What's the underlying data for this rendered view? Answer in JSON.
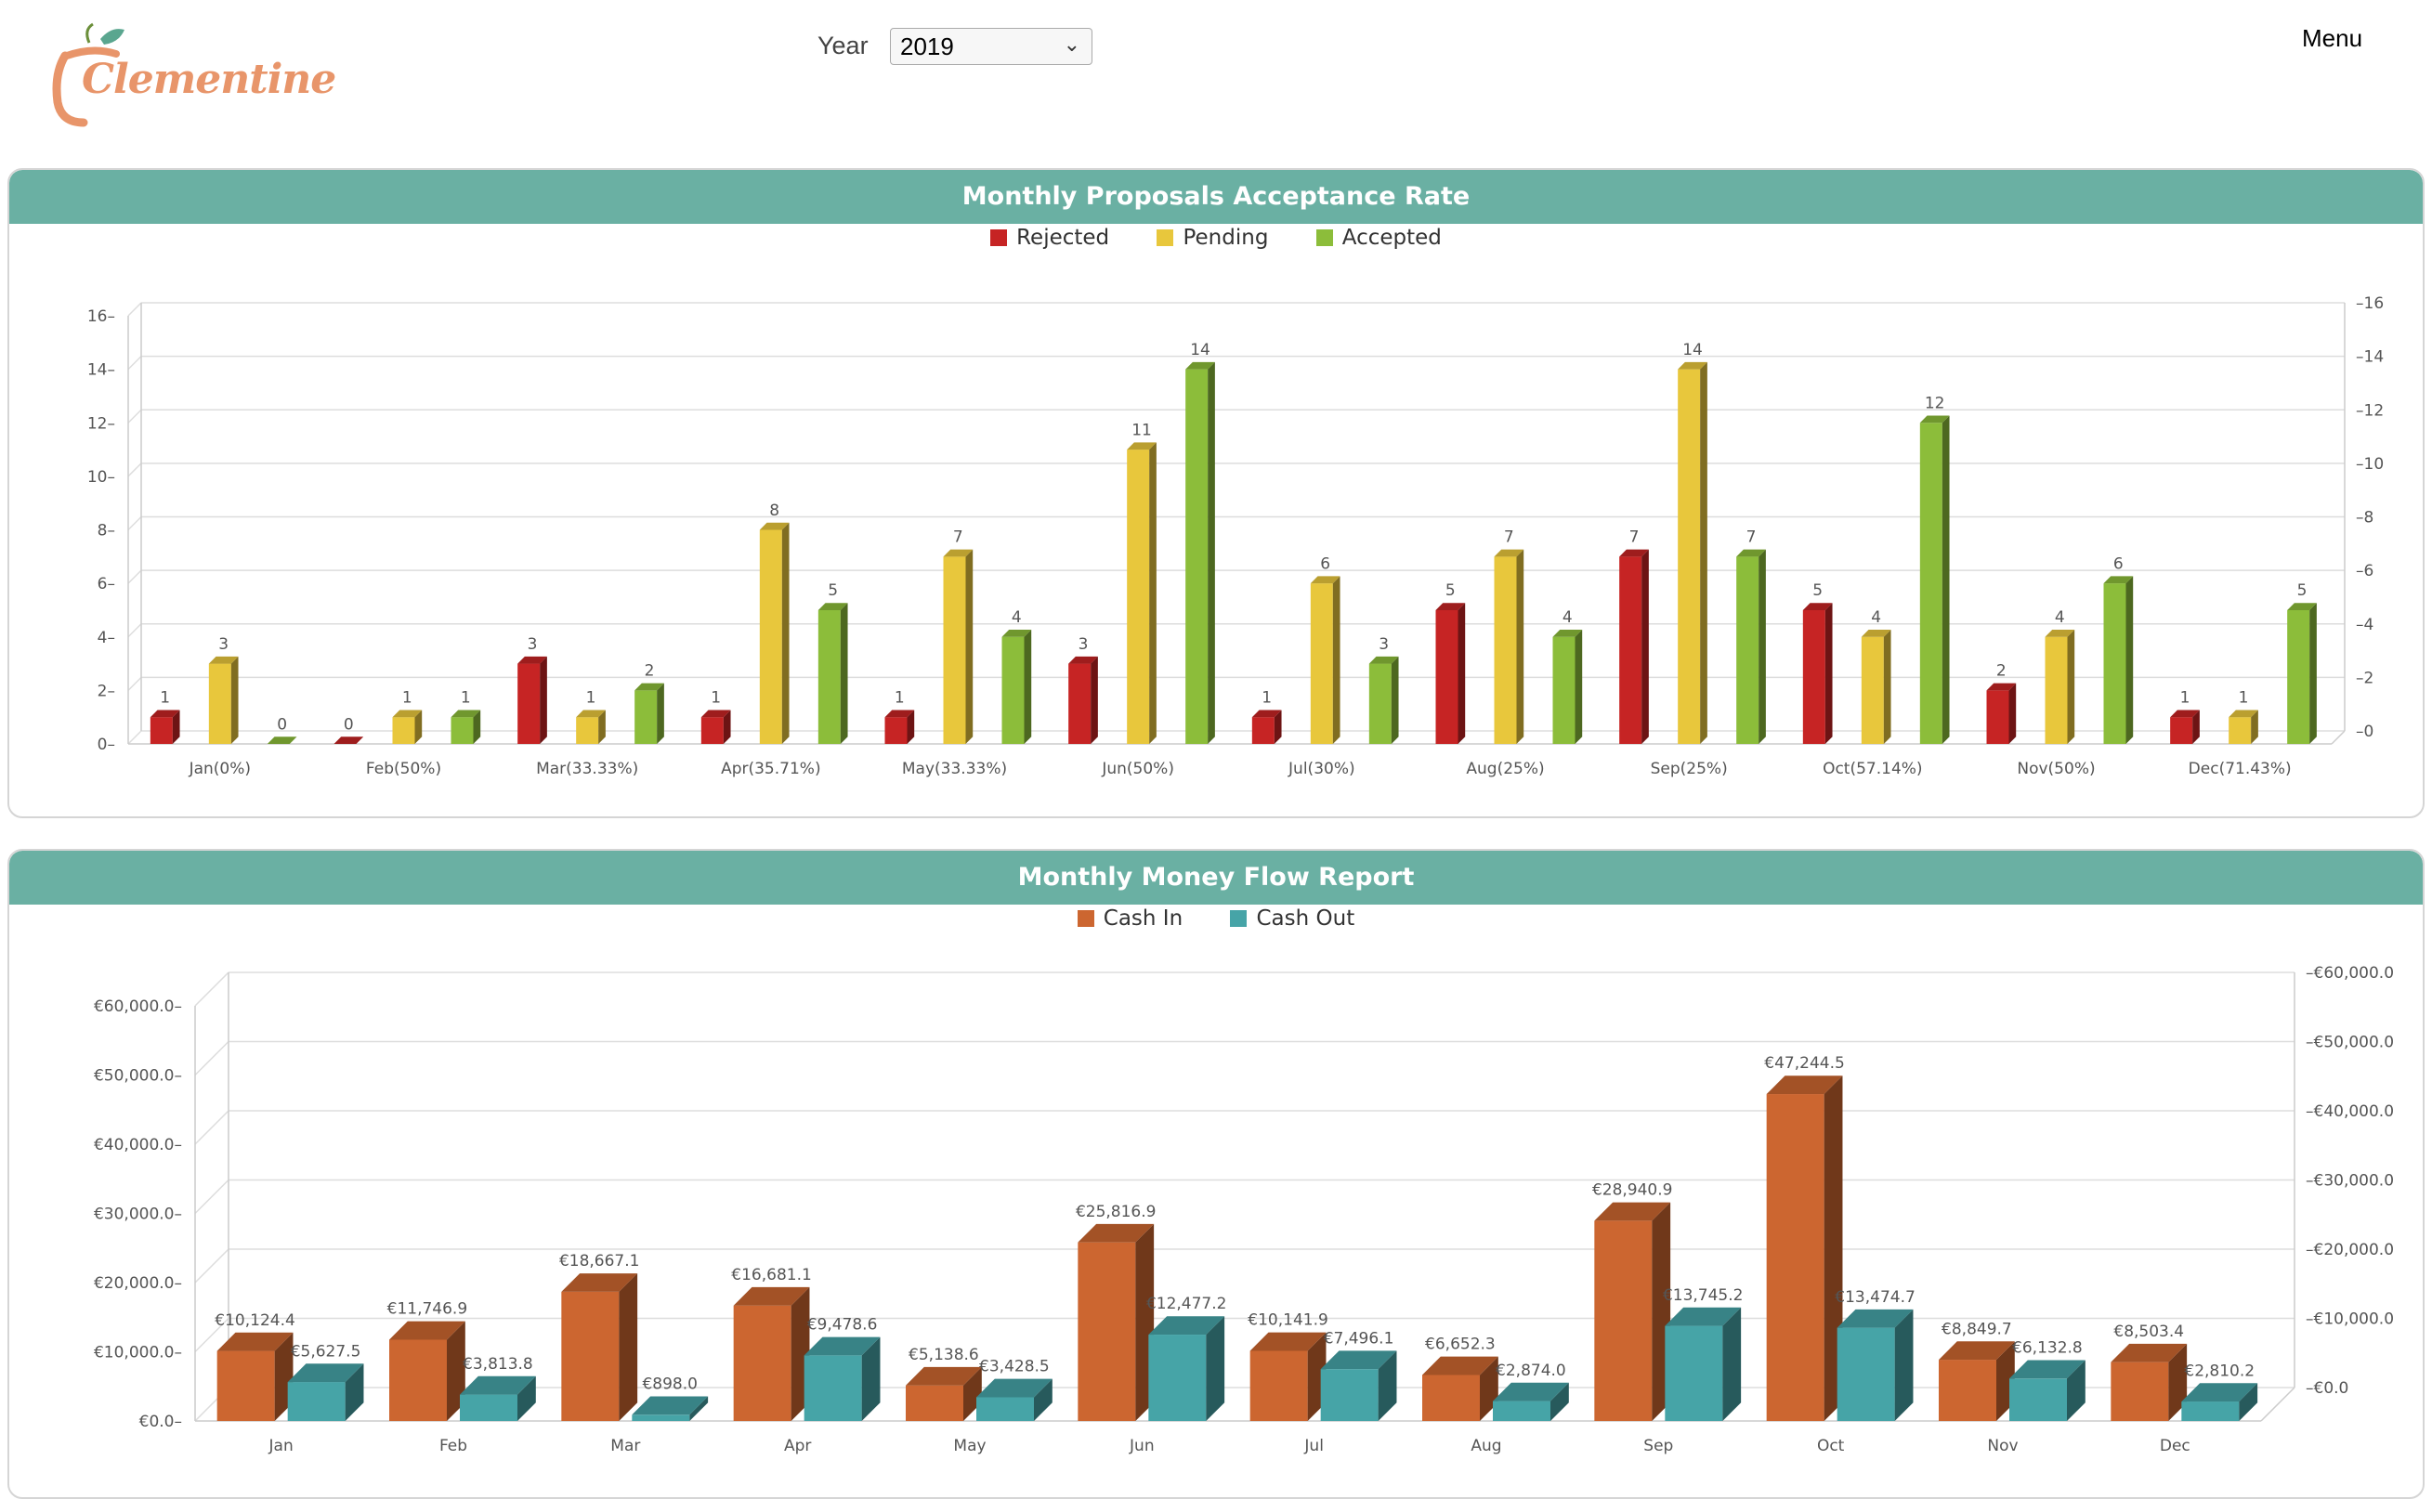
{
  "header": {
    "logo_text": "Clementine",
    "year_label": "Year",
    "year_selected": "2019",
    "menu_label": "Menu"
  },
  "colors": {
    "panel_header": "#6ab0a3",
    "rejected": "#c62424",
    "pending": "#e8c73c",
    "accepted": "#8cbd3a",
    "cash_in": "#cc6630",
    "cash_out": "#46a4a7"
  },
  "proposals": {
    "title": "Monthly Proposals Acceptance Rate",
    "legend": [
      "Rejected",
      "Pending",
      "Accepted"
    ]
  },
  "money": {
    "title": "Monthly Money Flow Report",
    "legend": [
      "Cash In",
      "Cash Out"
    ]
  },
  "chart_data": [
    {
      "type": "bar",
      "title": "Monthly Proposals Acceptance Rate",
      "categories": [
        "Jan(0%)",
        "Feb(50%)",
        "Mar(33.33%)",
        "Apr(35.71%)",
        "May(33.33%)",
        "Jun(50%)",
        "Jul(30%)",
        "Aug(25%)",
        "Sep(25%)",
        "Oct(57.14%)",
        "Nov(50%)",
        "Dec(71.43%)"
      ],
      "series": [
        {
          "name": "Rejected",
          "values": [
            1,
            0,
            3,
            1,
            1,
            3,
            1,
            5,
            7,
            5,
            2,
            1
          ]
        },
        {
          "name": "Pending",
          "values": [
            3,
            1,
            1,
            8,
            7,
            11,
            6,
            7,
            14,
            4,
            4,
            1
          ]
        },
        {
          "name": "Accepted",
          "values": [
            0,
            1,
            2,
            5,
            4,
            14,
            3,
            4,
            7,
            12,
            6,
            5
          ]
        }
      ],
      "ylim": [
        0,
        16
      ],
      "yticks": [
        "0",
        "2",
        "4",
        "6",
        "8",
        "10",
        "12",
        "14",
        "16"
      ],
      "grid": true,
      "legend_position": "top-center"
    },
    {
      "type": "bar",
      "title": "Monthly Money Flow Report",
      "categories": [
        "Jan",
        "Feb",
        "Mar",
        "Apr",
        "May",
        "Jun",
        "Jul",
        "Aug",
        "Sep",
        "Oct",
        "Nov",
        "Dec"
      ],
      "series": [
        {
          "name": "Cash In",
          "values": [
            10124.4,
            11746.9,
            18667.1,
            16681.1,
            5138.6,
            25816.9,
            10141.9,
            6652.3,
            28940.9,
            47244.5,
            8849.7,
            8503.4
          ],
          "labels": [
            "€10,124.4",
            "€11,746.9",
            "€18,667.1",
            "€16,681.1",
            "€5,138.6",
            "€25,816.9",
            "€10,141.9",
            "€6,652.3",
            "€28,940.9",
            "€47,244.5",
            "€8,849.7",
            "€8,503.4"
          ]
        },
        {
          "name": "Cash Out",
          "values": [
            5627.5,
            3813.8,
            898.0,
            9478.6,
            3428.5,
            12477.2,
            7496.1,
            2874.0,
            13745.2,
            13474.7,
            6132.8,
            2810.2
          ],
          "labels": [
            "€5,627.5",
            "€3,813.8",
            "€898.0",
            "€9,478.6",
            "€3,428.5",
            "€12,477.2",
            "€7,496.1",
            "€2,874.0",
            "€13,745.2",
            "€13,474.7",
            "€6,132.8",
            "€2,810.2"
          ]
        }
      ],
      "ylim": [
        0,
        60000
      ],
      "yticks": [
        "€0.0",
        "€10,000.0",
        "€20,000.0",
        "€30,000.0",
        "€40,000.0",
        "€50,000.0",
        "€60,000.0"
      ],
      "grid": true,
      "legend_position": "top-center"
    }
  ]
}
